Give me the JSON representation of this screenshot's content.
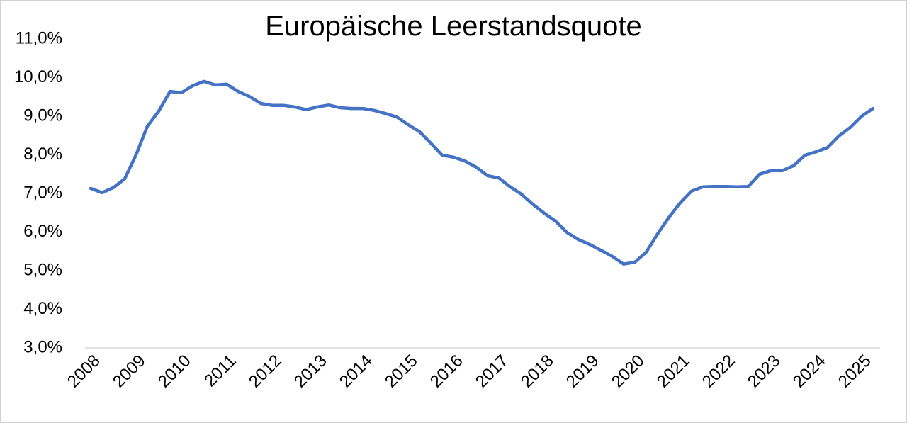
{
  "chart_data": {
    "type": "line",
    "title": "Europäische Leerstandsquote",
    "categories": [
      "2008",
      null,
      null,
      null,
      "2009",
      null,
      null,
      null,
      "2010",
      null,
      null,
      null,
      "2011",
      null,
      null,
      null,
      "2012",
      null,
      null,
      null,
      "2013",
      null,
      null,
      null,
      "2014",
      null,
      null,
      null,
      "2015",
      null,
      null,
      null,
      "2016",
      null,
      null,
      null,
      "2017",
      null,
      null,
      null,
      "2018",
      null,
      null,
      null,
      "2019",
      null,
      null,
      null,
      "2020",
      null,
      null,
      null,
      "2021",
      null,
      null,
      null,
      "2022",
      null,
      null,
      null,
      "2023",
      null,
      null,
      null,
      "2024",
      null,
      null,
      null,
      "2025",
      null
    ],
    "series": [
      {
        "name": "Leerstandsquote",
        "color": "#4472c4",
        "values": [
          7.13,
          7.02,
          7.15,
          7.38,
          8.0,
          8.74,
          9.13,
          9.64,
          9.61,
          9.79,
          9.9,
          9.81,
          9.83,
          9.64,
          9.51,
          9.33,
          9.28,
          9.28,
          9.24,
          9.17,
          9.24,
          9.29,
          9.22,
          9.2,
          9.2,
          9.15,
          9.07,
          8.98,
          8.78,
          8.6,
          8.3,
          7.99,
          7.94,
          7.84,
          7.68,
          7.46,
          7.4,
          7.17,
          6.98,
          6.72,
          6.49,
          6.28,
          5.99,
          5.81,
          5.68,
          5.53,
          5.37,
          5.17,
          5.22,
          5.48,
          5.95,
          6.38,
          6.76,
          7.06,
          7.17,
          7.18,
          7.18,
          7.17,
          7.18,
          7.5,
          7.59,
          7.59,
          7.72,
          7.99,
          8.08,
          8.19,
          8.49,
          8.71,
          9.0,
          9.2
        ]
      }
    ],
    "ylim": [
      3,
      11
    ],
    "yticks": [
      {
        "value": 3,
        "label": "3,0%"
      },
      {
        "value": 4,
        "label": "4,0%"
      },
      {
        "value": 5,
        "label": "5,0%"
      },
      {
        "value": 6,
        "label": "6,0%"
      },
      {
        "value": 7,
        "label": "7,0%"
      },
      {
        "value": 8,
        "label": "8,0%"
      },
      {
        "value": 9,
        "label": "9,0%"
      },
      {
        "value": 10,
        "label": "10,0%"
      },
      {
        "value": 11,
        "label": "11,0%"
      }
    ],
    "grid": false
  }
}
